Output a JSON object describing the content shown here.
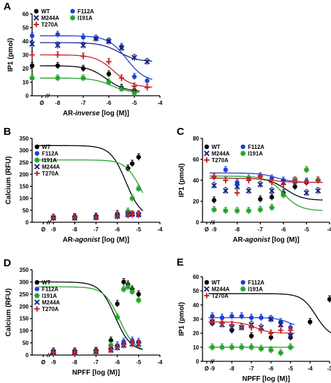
{
  "chart_data": [
    {
      "panel": "A",
      "type": "line",
      "ylabel": "IP1 (pmol)",
      "xlabel": "AR-",
      "xlabel_italic": "inverse",
      "xlabel_suffix": " [log (M)]",
      "xlim": [
        -9,
        -4
      ],
      "ylim": [
        0,
        60
      ],
      "xticks": [
        -8,
        -7,
        -6,
        -5,
        -4
      ],
      "yticks": [
        0,
        10,
        20,
        30,
        40,
        50,
        60
      ],
      "x_zero_label": "Ø",
      "legend": [
        "WT",
        "F112A",
        "M244A",
        "I191A",
        "T270A"
      ],
      "series": [
        {
          "name": "WT",
          "color": "#000000",
          "marker": "circle",
          "x": [
            -9,
            -8,
            -7,
            -6,
            -5.5,
            -5
          ],
          "y": [
            22,
            22,
            20,
            16,
            6,
            4
          ],
          "fit": {
            "top": 22,
            "bottom": 3,
            "ec50": -6.1
          }
        },
        {
          "name": "F112A",
          "color": "#1f3fd6",
          "marker": "circle",
          "x": [
            -9,
            -8,
            -7,
            -6.5,
            -6,
            -5.5,
            -5,
            -4.5
          ],
          "y": [
            44,
            45,
            43,
            42,
            40,
            36,
            14,
            11
          ],
          "fit": {
            "top": 44,
            "bottom": 10,
            "ec50": -5.3
          }
        },
        {
          "name": "M244A",
          "color": "#1a237e",
          "marker": "x",
          "x": [
            -9,
            -8,
            -7,
            -6.5,
            -6,
            -5.5,
            -5,
            -4.5
          ],
          "y": [
            38,
            37,
            37,
            42,
            40,
            35,
            28,
            25
          ],
          "fit": {
            "top": 39,
            "bottom": 25,
            "ec50": -5.6
          }
        },
        {
          "name": "I191A",
          "color": "#22a12a",
          "marker": "star",
          "x": [
            -9,
            -8,
            -7,
            -6,
            -5.5,
            -5
          ],
          "y": [
            13,
            13,
            13,
            10,
            5,
            2
          ],
          "fit": {
            "top": 13,
            "bottom": 2,
            "ec50": -5.9
          }
        },
        {
          "name": "T270A",
          "color": "#c62828",
          "marker": "plus",
          "x": [
            -9,
            -8,
            -7,
            -6,
            -5.5,
            -5,
            -4.5
          ],
          "y": [
            30,
            30,
            29,
            25,
            13,
            7,
            6
          ],
          "fit": {
            "top": 30,
            "bottom": 6,
            "ec50": -5.8
          }
        }
      ]
    },
    {
      "panel": "B",
      "type": "line",
      "ylabel": "Calcium (RFU)",
      "xlabel": "AR-",
      "xlabel_italic": "agonist",
      "xlabel_suffix": " [log (M)]",
      "xlim": [
        -10,
        -4
      ],
      "ylim": [
        0,
        350
      ],
      "xticks": [
        -9,
        -8,
        -7,
        -6,
        -5,
        -4
      ],
      "yticks": [
        0,
        50,
        100,
        150,
        200,
        250,
        300,
        350
      ],
      "x_zero_label": "Ø",
      "legend": [
        "WT",
        "F112A",
        "I191A",
        "M244A",
        "T270A"
      ],
      "series": [
        {
          "name": "WT",
          "color": "#000000",
          "marker": "circle",
          "x": [
            -9,
            -8,
            -7,
            -6,
            -5.5,
            -5.3,
            -5
          ],
          "y": [
            20,
            22,
            24,
            35,
            225,
            245,
            272
          ],
          "fit": {
            "top": 320,
            "bottom": 18,
            "ec50": -5.6
          }
        },
        {
          "name": "F112A",
          "color": "#1f3fd6",
          "marker": "circle",
          "x": [
            -9,
            -8,
            -7,
            -6,
            -5.5,
            -5.3,
            -5
          ],
          "y": [
            18,
            18,
            20,
            28,
            30,
            32,
            30
          ]
        },
        {
          "name": "I191A",
          "color": "#22a12a",
          "marker": "star",
          "x": [
            -9,
            -8,
            -7,
            -6,
            -5.5,
            -5.3,
            -5
          ],
          "y": [
            18,
            18,
            19,
            24,
            45,
            100,
            140
          ],
          "fit": {
            "top": 260,
            "bottom": 18,
            "ec50": -4.9
          }
        },
        {
          "name": "M244A",
          "color": "#1a237e",
          "marker": "x",
          "x": [
            -9,
            -8,
            -7,
            -6,
            -5.5,
            -5.3,
            -5
          ],
          "y": [
            18,
            18,
            20,
            25,
            32,
            34,
            32
          ]
        },
        {
          "name": "T270A",
          "color": "#c62828",
          "marker": "plus",
          "x": [
            -9,
            -8,
            -7,
            -6,
            -5.5,
            -5.3,
            -5
          ],
          "y": [
            18,
            20,
            20,
            26,
            30,
            33,
            35
          ]
        }
      ]
    },
    {
      "panel": "C",
      "type": "line",
      "ylabel": "IP1 (pmol)",
      "xlabel": "AR-",
      "xlabel_italic": "agonist",
      "xlabel_suffix": " [log (M)]",
      "xlim": [
        -9.5,
        -4
      ],
      "ylim": [
        0,
        80
      ],
      "xticks": [
        -9,
        -8,
        -7,
        -6,
        -5,
        -4
      ],
      "yticks": [
        0,
        20,
        40,
        60,
        80
      ],
      "x_zero_label": "Ø",
      "legend": [
        "WT",
        "F112A",
        "M244A",
        "I191A",
        "T270A"
      ],
      "series": [
        {
          "name": "WT",
          "color": "#000000",
          "marker": "circle",
          "x": [
            -9,
            -7,
            -6.5,
            -6,
            -5.5,
            -5,
            -4.5
          ],
          "y": [
            21,
            22,
            24,
            28,
            34,
            38,
            40
          ],
          "fit": {
            "top": 42,
            "bottom": 21,
            "ec50": -5.9
          }
        },
        {
          "name": "F112A",
          "color": "#1f3fd6",
          "marker": "circle",
          "x": [
            -9,
            -8.5,
            -8,
            -7.5,
            -7,
            -6.5,
            -6,
            -5.5,
            -5,
            -4.5
          ],
          "y": [
            43,
            50,
            38,
            42,
            44,
            42,
            40,
            38,
            39,
            40
          ],
          "fit": {
            "top": 47,
            "bottom": 38,
            "ec50": -6.3
          }
        },
        {
          "name": "M244A",
          "color": "#1a237e",
          "marker": "x",
          "x": [
            -9,
            -8.5,
            -8,
            -7.5,
            -7,
            -6.5,
            -6,
            -5.5,
            -5,
            -4.5
          ],
          "y": [
            35,
            30,
            34,
            30,
            36,
            30,
            38,
            40,
            28,
            30
          ]
        },
        {
          "name": "I191A",
          "color": "#22a12a",
          "marker": "star",
          "x": [
            -9,
            -8.5,
            -8,
            -7.5,
            -7,
            -6.5,
            -6,
            -5.5,
            -5,
            -4.5
          ],
          "y": [
            12,
            11,
            11,
            11,
            12,
            14,
            26,
            40,
            50,
            40
          ],
          "fit": {
            "top": 44,
            "bottom": 11,
            "ec50": -6.0
          }
        },
        {
          "name": "T270A",
          "color": "#c62828",
          "marker": "plus",
          "x": [
            -9,
            -8.5,
            -8,
            -7.5,
            -7,
            -6.5,
            -6,
            -5.5,
            -5,
            -4.5
          ],
          "y": [
            44,
            40,
            28,
            40,
            44,
            38,
            36,
            40,
            38,
            40
          ],
          "fit": {
            "top": 42,
            "bottom": 38,
            "ec50": -6.5
          }
        }
      ]
    },
    {
      "panel": "D",
      "type": "line",
      "ylabel": "Calcium (RFU)",
      "xlabel": "NPFF [log (M)]",
      "xlim": [
        -10,
        -4
      ],
      "ylim": [
        0,
        350
      ],
      "xticks": [
        -9,
        -8,
        -7,
        -6,
        -5,
        -4
      ],
      "yticks": [
        0,
        50,
        100,
        150,
        200,
        250,
        300,
        350
      ],
      "x_zero_label": "Ø",
      "legend": [
        "WT",
        "F112A",
        "I191A",
        "M244A",
        "T270A"
      ],
      "series": [
        {
          "name": "WT",
          "color": "#000000",
          "marker": "circle",
          "x": [
            -9,
            -8,
            -7,
            -6.3,
            -6,
            -5.7,
            -5.5,
            -5.3,
            -5
          ],
          "y": [
            15,
            15,
            18,
            60,
            210,
            300,
            290,
            270,
            250
          ],
          "fit": {
            "top": 300,
            "bottom": 15,
            "ec50": -6.1
          }
        },
        {
          "name": "F112A",
          "color": "#1f3fd6",
          "marker": "circle",
          "x": [
            -9,
            -8,
            -7,
            -6.3,
            -6,
            -5.7,
            -5.3,
            -5
          ],
          "y": [
            12,
            12,
            14,
            25,
            40,
            55,
            60,
            55
          ]
        },
        {
          "name": "I191A",
          "color": "#22a12a",
          "marker": "star",
          "x": [
            -9,
            -8,
            -7,
            -6.3,
            -6,
            -5.7,
            -5.5,
            -5.3,
            -5
          ],
          "y": [
            12,
            12,
            14,
            40,
            155,
            270,
            280,
            260,
            225
          ],
          "fit": {
            "top": 280,
            "bottom": 12,
            "ec50": -5.9
          }
        },
        {
          "name": "M244A",
          "color": "#1a237e",
          "marker": "x",
          "x": [
            -9,
            -8,
            -7,
            -6.3,
            -6,
            -5.7,
            -5.3,
            -5
          ],
          "y": [
            12,
            12,
            14,
            20,
            30,
            40,
            45,
            45
          ]
        },
        {
          "name": "T270A",
          "color": "#c62828",
          "marker": "plus",
          "x": [
            -9,
            -8,
            -7,
            -6.3,
            -6,
            -5.7,
            -5.3,
            -5
          ],
          "y": [
            12,
            12,
            15,
            22,
            32,
            42,
            48,
            48
          ]
        }
      ]
    },
    {
      "panel": "E",
      "type": "line",
      "ylabel": "IP1 (pmol)",
      "xlabel": "NPFF [log (M)]",
      "xlim": [
        -9.5,
        -3
      ],
      "ylim": [
        0,
        60
      ],
      "xticks": [
        -9,
        -8,
        -7,
        -6,
        -5,
        -4,
        -3
      ],
      "yticks": [
        0,
        10,
        20,
        30,
        40,
        50,
        60
      ],
      "x_zero_label": "Ø",
      "legend": [
        "WT",
        "F112A",
        "M244A",
        "I191A",
        "T270A"
      ],
      "series": [
        {
          "name": "WT",
          "color": "#000000",
          "marker": "circle",
          "x": [
            -9,
            -8,
            -7,
            -6,
            -5,
            -4,
            -3
          ],
          "y": [
            27,
            22,
            18,
            17,
            17,
            28,
            44
          ],
          "fit": {
            "top": 48,
            "bottom": 17,
            "ec50": -3.7
          }
        },
        {
          "name": "F112A",
          "color": "#1f3fd6",
          "marker": "circle",
          "x": [
            -9,
            -8.5,
            -8,
            -7.5,
            -7,
            -6.5,
            -6,
            -5.5,
            -5
          ],
          "y": [
            32,
            31,
            32,
            32,
            31,
            31,
            30,
            28,
            24
          ],
          "fit": {
            "top": 31,
            "bottom": 23,
            "ec50": -5.0
          }
        },
        {
          "name": "M244A",
          "color": "#1a237e",
          "marker": "x",
          "x": [
            -9,
            -8.5,
            -8,
            -7.5,
            -7,
            -6.5,
            -6,
            -5.5,
            -5
          ],
          "y": [
            28,
            26,
            24,
            24,
            26,
            24,
            30,
            26,
            18
          ]
        },
        {
          "name": "I191A",
          "color": "#22a12a",
          "marker": "star",
          "x": [
            -9,
            -8.5,
            -8,
            -7.5,
            -7,
            -6.5,
            -6,
            -5.5,
            -5
          ],
          "y": [
            10,
            10,
            10,
            10,
            10,
            9,
            8,
            6,
            10
          ],
          "fit": {
            "top": 10,
            "bottom": 10,
            "ec50": -6.0
          }
        },
        {
          "name": "T270A",
          "color": "#c62828",
          "marker": "plus",
          "x": [
            -9,
            -8.5,
            -8,
            -7.5,
            -7,
            -6.5,
            -6,
            -5.5,
            -5
          ],
          "y": [
            28,
            27,
            26,
            24,
            24,
            22,
            20,
            22,
            22
          ],
          "fit": {
            "top": 28,
            "bottom": 20,
            "ec50": -6.8
          }
        }
      ]
    }
  ]
}
